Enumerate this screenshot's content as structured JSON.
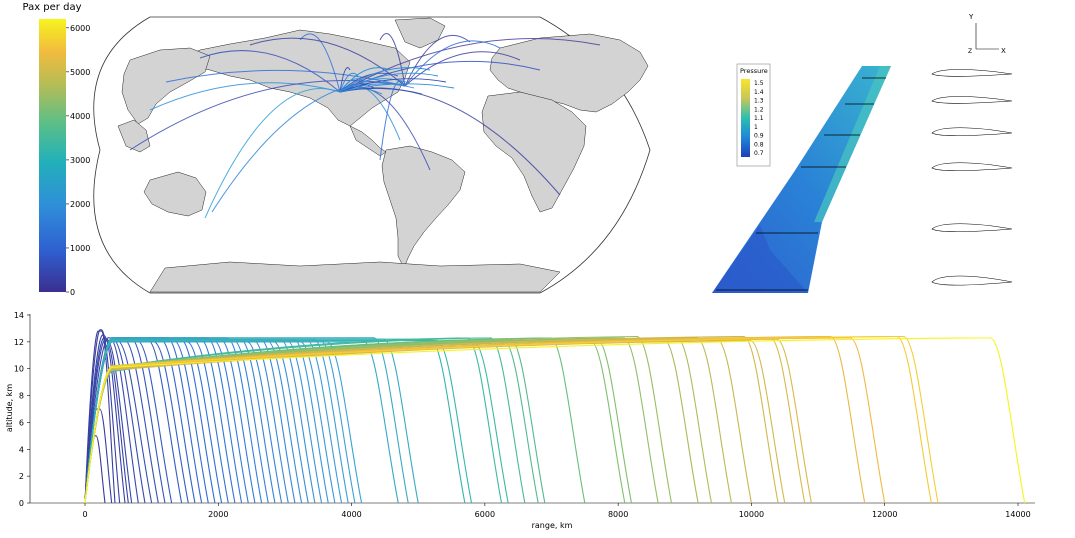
{
  "colors": {
    "viridis_like": [
      "#3b2f8f",
      "#2f6fd6",
      "#3b9fd8",
      "#33b8a8",
      "#7cc06e",
      "#c9b84f",
      "#f3b843",
      "#f6f41d"
    ],
    "land": "#d3d3d3",
    "land_edge": "#222222",
    "pressure_scale": [
      "#1d3fb8",
      "#2468d6",
      "#1f90d8",
      "#20b2c4",
      "#3bc3a1",
      "#8fc97a",
      "#d6c552",
      "#f0c93a",
      "#f7e52a"
    ]
  },
  "pax_colorbar": {
    "title": "Pax per day",
    "ticks": [
      "0",
      "1000",
      "2000",
      "3000",
      "4000",
      "5000",
      "6000"
    ]
  },
  "pressure_legend": {
    "title": "Pressure",
    "ticks": [
      "1.5",
      "1.4",
      "1.3",
      "1.2",
      "1.1",
      "1",
      "0.9",
      "0.8",
      "0.7"
    ]
  },
  "axis_triad": {
    "y": "Y",
    "z": "Z",
    "x": "X"
  },
  "chart_data": {
    "type": "line",
    "xlabel": "range, km",
    "ylabel": "altitude, km",
    "xlim": [
      0,
      14200
    ],
    "ylim": [
      0,
      14
    ],
    "xticks": [
      "0",
      "2000",
      "4000",
      "6000",
      "8000",
      "10000",
      "12000",
      "14000"
    ],
    "yticks": [
      "0",
      "2",
      "4",
      "6",
      "8",
      "10",
      "12",
      "14"
    ],
    "grid": false,
    "legend": "none",
    "series_note": "flight trajectories colored by range",
    "trajectories_ranges_km": [
      300,
      400,
      450,
      520,
      600,
      650,
      700,
      800,
      900,
      1000,
      1100,
      1200,
      1300,
      1450,
      1550,
      1650,
      1750,
      1850,
      1950,
      2050,
      2150,
      2250,
      2350,
      2450,
      2550,
      2650,
      2750,
      2850,
      2950,
      3050,
      3150,
      3250,
      3350,
      3450,
      3550,
      3650,
      3750,
      3850,
      3950,
      4050,
      4150,
      4700,
      4850,
      5000,
      5700,
      5800,
      6250,
      6350,
      6600,
      6800,
      6900,
      7500,
      8100,
      8200,
      8600,
      8800,
      9200,
      9400,
      9700,
      10000,
      10400,
      10500,
      10800,
      10900,
      11700,
      12000,
      12700,
      12800,
      14100
    ],
    "cruise_altitude_km": [
      5.0,
      7.0,
      12.8,
      12.9,
      12.5,
      12.3,
      12.2,
      12.3,
      12.2,
      12.1,
      12.2,
      12.3,
      12.1,
      12.2,
      12.0,
      12.2,
      12.3,
      12.1,
      12.2,
      12.0,
      12.1,
      12.2,
      12.3,
      12.1,
      12.2,
      12.3,
      12.1,
      12.2,
      12.0,
      12.1,
      12.2,
      12.1,
      12.0,
      12.2,
      12.1,
      12.2,
      12.0,
      12.1,
      12.2,
      12.1,
      12.0,
      12.0,
      12.3,
      12.2,
      12.2,
      12.1,
      12.3,
      12.0,
      12.3,
      12.1,
      12.2,
      12.3,
      12.1,
      12.2,
      12.3,
      12.4,
      12.2,
      12.3,
      12.3,
      12.2,
      12.4,
      12.1,
      12.3,
      12.2,
      12.4,
      12.3,
      12.4,
      12.4,
      12.3
    ]
  }
}
